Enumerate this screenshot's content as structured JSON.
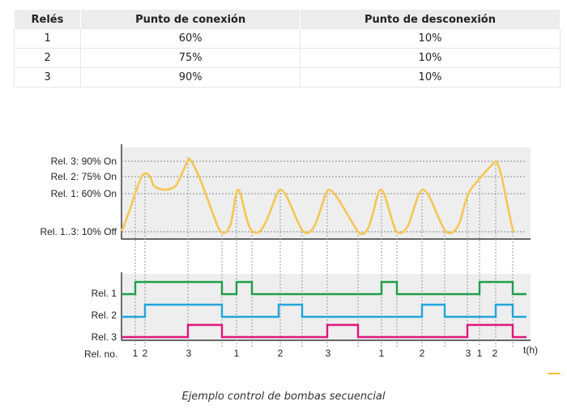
{
  "table": {
    "headers": [
      "Relés",
      "Punto de conexión",
      "Punto de desconexión"
    ],
    "rows": [
      [
        "1",
        "60%",
        "10%"
      ],
      [
        "2",
        "75%",
        "10%"
      ],
      [
        "3",
        "90%",
        "10%"
      ]
    ]
  },
  "diagram": {
    "level_labels": [
      "Rel. 3: 90% On",
      "Rel. 2: 75% On",
      "Rel. 1: 60% On",
      "Rel. 1..3: 10% Off"
    ],
    "relay_labels": [
      "Rel. 1",
      "Rel. 2",
      "Rel. 3"
    ],
    "relno_label": "Rel. no.",
    "time_label": "t(h)",
    "relay_events": [
      "1",
      "2",
      "3",
      "1",
      "2",
      "3",
      "1",
      "2",
      "3",
      "1",
      "2"
    ],
    "colors": {
      "level_curve": "#f4c652",
      "relay_1": "#1f9e4a",
      "relay_2": "#21a5dd",
      "relay_3": "#e0147d",
      "panel_bg": "#eeeeee"
    }
  },
  "caption": "Ejemplo control de bombas secuencial"
}
